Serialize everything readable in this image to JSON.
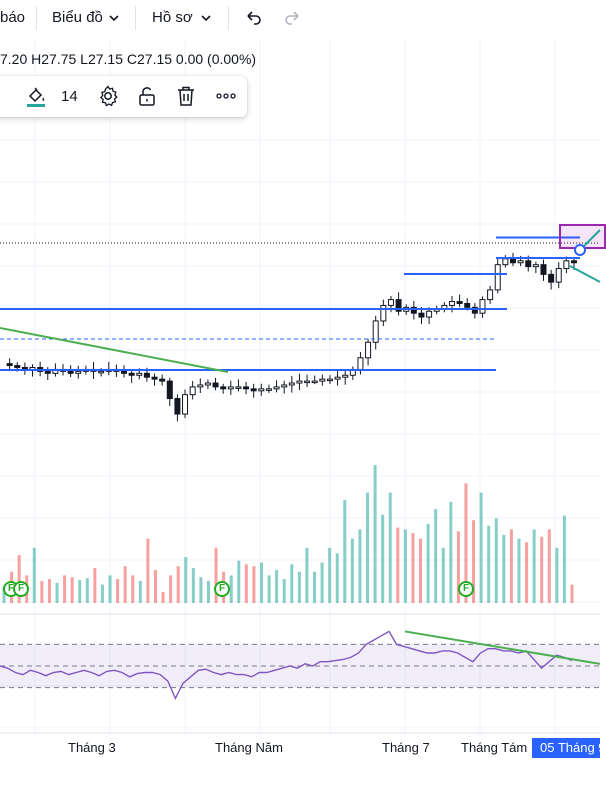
{
  "topbar": {
    "item_left": "báo",
    "chart_menu": "Biểu đồ",
    "profile_menu": "Hồ sơ"
  },
  "legend": {
    "ohlc_text": "7.20  H27.75  L27.15  C27.15  0.00 (0.00%)"
  },
  "drawing_toolbar": {
    "line_width": "14"
  },
  "x_axis": {
    "labels": [
      "Tháng 3",
      "Tháng Năm",
      "Tháng 7",
      "Tháng Tám"
    ],
    "cursor_label": "05 Tháng 9"
  },
  "events": {
    "marker_label": "F"
  },
  "colors": {
    "accent": "#2962ff",
    "up": "#26a69a",
    "down": "#ef5350",
    "trendline": "#4caf50",
    "rsi": "#7e57c2",
    "level_line": "#2962ff"
  },
  "chart_data": {
    "type": "candlestick",
    "ohlc_last": {
      "H": 27.75,
      "L": 27.15,
      "C": 27.15,
      "change": 0.0,
      "change_pct": "0.00%"
    },
    "price_path": [
      21.2,
      21.1,
      21.0,
      20.9,
      21.0,
      20.8,
      20.7,
      20.9,
      20.8,
      20.7,
      20.8,
      20.9,
      20.8,
      20.8,
      20.9,
      20.8,
      20.7,
      20.6,
      20.7,
      20.5,
      20.4,
      20.3,
      19.4,
      18.6,
      19.6,
      20.0,
      20.1,
      20.2,
      20.0,
      19.9,
      20.0,
      20.0,
      19.9,
      19.8,
      19.9,
      19.9,
      20.0,
      20.1,
      20.2,
      20.3,
      20.3,
      20.3,
      20.4,
      20.4,
      20.5,
      20.6,
      20.9,
      21.5,
      22.3,
      23.4,
      24.2,
      24.5,
      23.9,
      24.1,
      23.8,
      23.6,
      23.9,
      24.0,
      24.2,
      24.4,
      24.3,
      24.1,
      23.8,
      24.5,
      25.0,
      26.3,
      26.6,
      26.4,
      26.5,
      26.2,
      26.3,
      25.8,
      25.4,
      26.1,
      26.5,
      26.4
    ],
    "volume_path": [
      18,
      34,
      52,
      30,
      60,
      24,
      26,
      22,
      30,
      28,
      25,
      27,
      38,
      20,
      30,
      26,
      40,
      30,
      24,
      70,
      36,
      12,
      30,
      40,
      50,
      38,
      28,
      24,
      60,
      34,
      30,
      46,
      42,
      40,
      44,
      30,
      36,
      26,
      42,
      34,
      60,
      34,
      44,
      60,
      54,
      112,
      70,
      80,
      120,
      150,
      96,
      120,
      82,
      80,
      76,
      70,
      86,
      102,
      60,
      110,
      78,
      130,
      90,
      120,
      84,
      92,
      74,
      80,
      70,
      66,
      80,
      72,
      80,
      60,
      95,
      20
    ],
    "rsi_path": [
      50,
      48,
      44,
      42,
      46,
      44,
      41,
      44,
      45,
      42,
      44,
      46,
      44,
      41,
      45,
      46,
      44,
      40,
      43,
      44,
      44,
      42,
      36,
      20,
      34,
      40,
      46,
      47,
      44,
      42,
      44,
      42,
      42,
      40,
      44,
      44,
      46,
      48,
      50,
      48,
      52,
      50,
      54,
      54,
      55,
      56,
      58,
      62,
      70,
      74,
      78,
      82,
      70,
      68,
      66,
      64,
      62,
      62,
      64,
      64,
      62,
      58,
      54,
      62,
      66,
      66,
      64,
      64,
      62,
      64,
      56,
      48,
      54,
      60,
      58,
      55
    ],
    "horizontal_levels": [
      27.7,
      26.5,
      23.9,
      22.4,
      20.4
    ],
    "rsi_bands": [
      70,
      30
    ]
  }
}
